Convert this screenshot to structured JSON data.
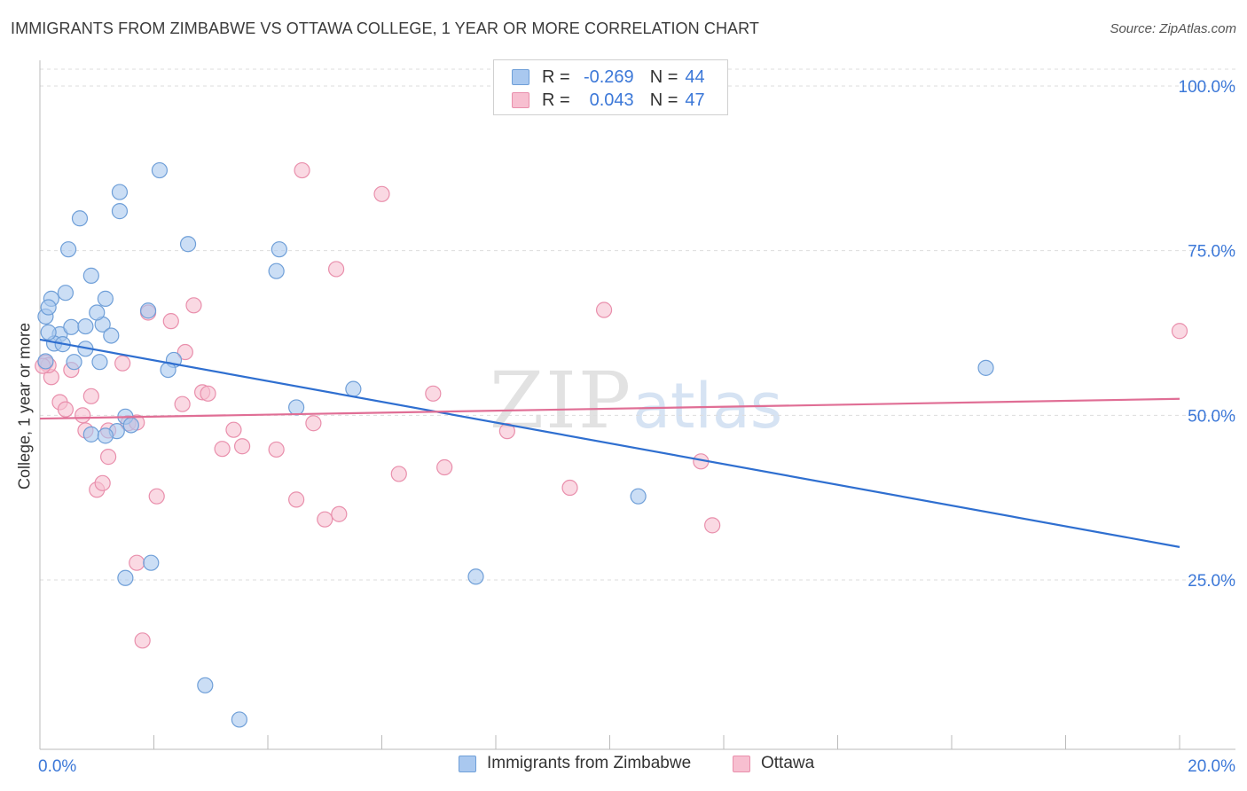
{
  "title": "IMMIGRANTS FROM ZIMBABWE VS OTTAWA COLLEGE, 1 YEAR OR MORE CORRELATION CHART",
  "source": "Source: ZipAtlas.com",
  "watermark": {
    "zip": "ZIP",
    "atlas": "atlas"
  },
  "legend": {
    "r_label": "R =",
    "n_label": "N =",
    "series": [
      {
        "r": "-0.269",
        "n": "44"
      },
      {
        "r": "0.043",
        "n": "47"
      }
    ]
  },
  "colors": {
    "blue_fill": "#a9c8ef",
    "blue_stroke": "#6f9fd8",
    "blue_line": "#2f6fd0",
    "pink_fill": "#f7bfd0",
    "pink_stroke": "#e98fac",
    "pink_line": "#e06e95",
    "tick_label": "#3c78d8"
  },
  "chart_data": {
    "type": "scatter",
    "title": "IMMIGRANTS FROM ZIMBABWE VS OTTAWA COLLEGE, 1 YEAR OR MORE CORRELATION CHART",
    "xlabel": "",
    "ylabel": "College, 1 year or more",
    "xlim": [
      0,
      20
    ],
    "ylim": [
      0,
      105
    ],
    "x_tick_labels": [
      "0.0%",
      "20.0%"
    ],
    "y_ticks": [
      25,
      50,
      75,
      100
    ],
    "y_tick_labels": [
      "25.0%",
      "50.0%",
      "75.0%",
      "100.0%"
    ],
    "grid": true,
    "legend_position": "bottom",
    "series": [
      {
        "name": "Immigrants from Zimbabwe",
        "color": "#a9c8ef",
        "trend": {
          "x": [
            0,
            20
          ],
          "y": [
            61.5,
            30.0
          ]
        },
        "points": [
          [
            0.1,
            65.0
          ],
          [
            0.2,
            67.7
          ],
          [
            0.15,
            66.4
          ],
          [
            0.45,
            68.6
          ],
          [
            0.7,
            79.9
          ],
          [
            0.5,
            75.2
          ],
          [
            0.9,
            71.2
          ],
          [
            1.15,
            67.7
          ],
          [
            1.4,
            81.0
          ],
          [
            1.4,
            83.9
          ],
          [
            2.1,
            87.2
          ],
          [
            2.6,
            76.0
          ],
          [
            4.2,
            75.2
          ],
          [
            4.15,
            71.9
          ],
          [
            0.35,
            62.3
          ],
          [
            0.55,
            63.4
          ],
          [
            0.8,
            63.5
          ],
          [
            1.1,
            63.8
          ],
          [
            1.25,
            62.1
          ],
          [
            0.25,
            60.9
          ],
          [
            0.4,
            60.8
          ],
          [
            0.6,
            58.1
          ],
          [
            0.8,
            60.1
          ],
          [
            1.05,
            58.1
          ],
          [
            0.1,
            58.2
          ],
          [
            0.15,
            62.6
          ],
          [
            1.0,
            65.6
          ],
          [
            1.9,
            65.9
          ],
          [
            2.35,
            58.4
          ],
          [
            2.25,
            56.9
          ],
          [
            1.5,
            49.8
          ],
          [
            1.6,
            48.5
          ],
          [
            1.35,
            47.6
          ],
          [
            0.9,
            47.1
          ],
          [
            1.15,
            46.9
          ],
          [
            4.5,
            51.2
          ],
          [
            5.5,
            54.0
          ],
          [
            1.5,
            25.3
          ],
          [
            1.95,
            27.6
          ],
          [
            2.9,
            9.0
          ],
          [
            3.5,
            3.8
          ],
          [
            7.65,
            25.5
          ],
          [
            10.5,
            37.7
          ],
          [
            16.6,
            57.2
          ]
        ]
      },
      {
        "name": "Ottawa",
        "color": "#f7bfd0",
        "trend": {
          "x": [
            0,
            20
          ],
          "y": [
            49.5,
            52.5
          ]
        },
        "points": [
          [
            0.1,
            58.0
          ],
          [
            0.2,
            55.8
          ],
          [
            0.15,
            57.6
          ],
          [
            0.55,
            56.9
          ],
          [
            0.35,
            52.0
          ],
          [
            0.45,
            50.9
          ],
          [
            0.75,
            50.0
          ],
          [
            0.9,
            52.9
          ],
          [
            0.8,
            47.7
          ],
          [
            1.2,
            47.7
          ],
          [
            1.0,
            38.7
          ],
          [
            1.1,
            39.7
          ],
          [
            1.2,
            43.7
          ],
          [
            1.45,
            57.9
          ],
          [
            1.55,
            48.8
          ],
          [
            1.7,
            48.9
          ],
          [
            1.9,
            65.6
          ],
          [
            2.05,
            37.7
          ],
          [
            1.7,
            27.6
          ],
          [
            1.8,
            15.8
          ],
          [
            2.3,
            64.3
          ],
          [
            2.55,
            59.6
          ],
          [
            2.5,
            51.7
          ],
          [
            2.7,
            66.7
          ],
          [
            2.85,
            53.5
          ],
          [
            2.95,
            53.3
          ],
          [
            3.2,
            44.9
          ],
          [
            3.4,
            47.8
          ],
          [
            3.55,
            45.3
          ],
          [
            4.15,
            44.8
          ],
          [
            4.5,
            37.2
          ],
          [
            4.6,
            87.2
          ],
          [
            4.8,
            48.8
          ],
          [
            5.0,
            34.2
          ],
          [
            5.25,
            35.0
          ],
          [
            5.2,
            72.2
          ],
          [
            6.0,
            83.6
          ],
          [
            6.3,
            41.1
          ],
          [
            6.9,
            53.3
          ],
          [
            7.1,
            42.1
          ],
          [
            8.2,
            47.6
          ],
          [
            9.3,
            39.0
          ],
          [
            9.9,
            66.0
          ],
          [
            11.6,
            43.0
          ],
          [
            11.8,
            33.3
          ],
          [
            20.0,
            62.8
          ],
          [
            0.05,
            57.5
          ]
        ]
      }
    ]
  }
}
